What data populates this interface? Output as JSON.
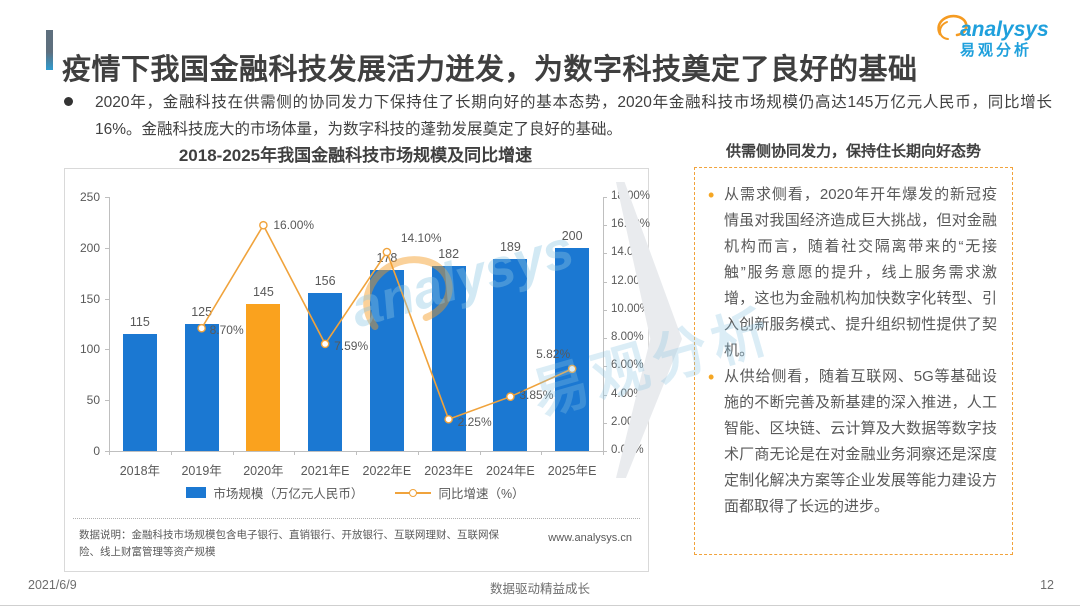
{
  "header": {
    "title": "疫情下我国金融科技发展活力迸发，为数字科技奠定了良好的基础",
    "logo": {
      "brand": "analysys",
      "brand_cn": "易观分析"
    }
  },
  "intro": {
    "text": "2020年，金融科技在供需侧的协同发力下保持住了长期向好的基本态势，2020年金融科技市场规模仍高达145万亿元人民币，同比增长16%。金融科技庞大的市场体量，为数字科技的蓬勃发展奠定了良好的基础。"
  },
  "chart": {
    "footnote": "数据说明：金融科技市场规模包含电子银行、直销银行、开放银行、互联网理财、互联网保险、线上财富管理等资产规模",
    "website": "www.analysys.cn"
  },
  "chart_data": {
    "type": "bar+line",
    "title": "2018-2025年我国金融科技市场规模及同比增速",
    "categories": [
      "2018年",
      "2019年",
      "2020年",
      "2021年E",
      "2022年E",
      "2023年E",
      "2024年E",
      "2025年E"
    ],
    "series": [
      {
        "name": "市场规模（万亿元人民币）",
        "type": "bar",
        "color": "#1b78d2",
        "highlight": {
          "index": 2,
          "color": "#faa21e"
        },
        "values": [
          115,
          125,
          145,
          156,
          178,
          182,
          189,
          200
        ]
      },
      {
        "name": "同比增速（%）",
        "type": "line",
        "color": "#f0a33c",
        "values": [
          null,
          8.7,
          16.0,
          7.59,
          14.1,
          2.25,
          3.85,
          5.82
        ],
        "labels": [
          null,
          "8.70%",
          "16.00%",
          "7.59%",
          "14.10%",
          "2.25%",
          "3.85%",
          "5.82%"
        ]
      }
    ],
    "left_axis": {
      "min": 0,
      "max": 250,
      "step": 50
    },
    "right_axis": {
      "min": 0,
      "max": 18,
      "step": 2,
      "format": "0.00%"
    },
    "legend_position": "bottom",
    "grid": false
  },
  "panel": {
    "title": "供需侧协同发力，保持住长期向好态势",
    "bullets": [
      {
        "text": "从需求侧看，2020年开年爆发的新冠疫情虽对我国经济造成巨大挑战，但对金融机构而言，随着社交隔离带来的“无接触”服务意愿的提升，线上服务需求激增，这也为金融机构加快数字化转型、引入创新服务模式、提升组织韧性提供了契机。"
      },
      {
        "text": "从供给侧看，随着互联网、5G等基础设施的不断完善及新基建的深入推进，人工智能、区块链、云计算及大数据等数字技术厂商无论是在对金融业务洞察还是深度定制化解决方案等企业发展等能力建设方面都取得了长远的进步。"
      }
    ]
  },
  "watermark": {
    "text_en": "analysys",
    "text_cn": "易观分析"
  },
  "footer": {
    "date": "2021/6/9",
    "center": "数据驱动精益成长",
    "page": "12"
  },
  "colors": {
    "brand_blue": "#1fa0dc",
    "brand_orange": "#f59b22",
    "bar_blue": "#1b78d2",
    "bar_highlight_orange": "#faa21e",
    "line_orange": "#f0a33c",
    "panel_border_orange": "#f2a33c"
  }
}
